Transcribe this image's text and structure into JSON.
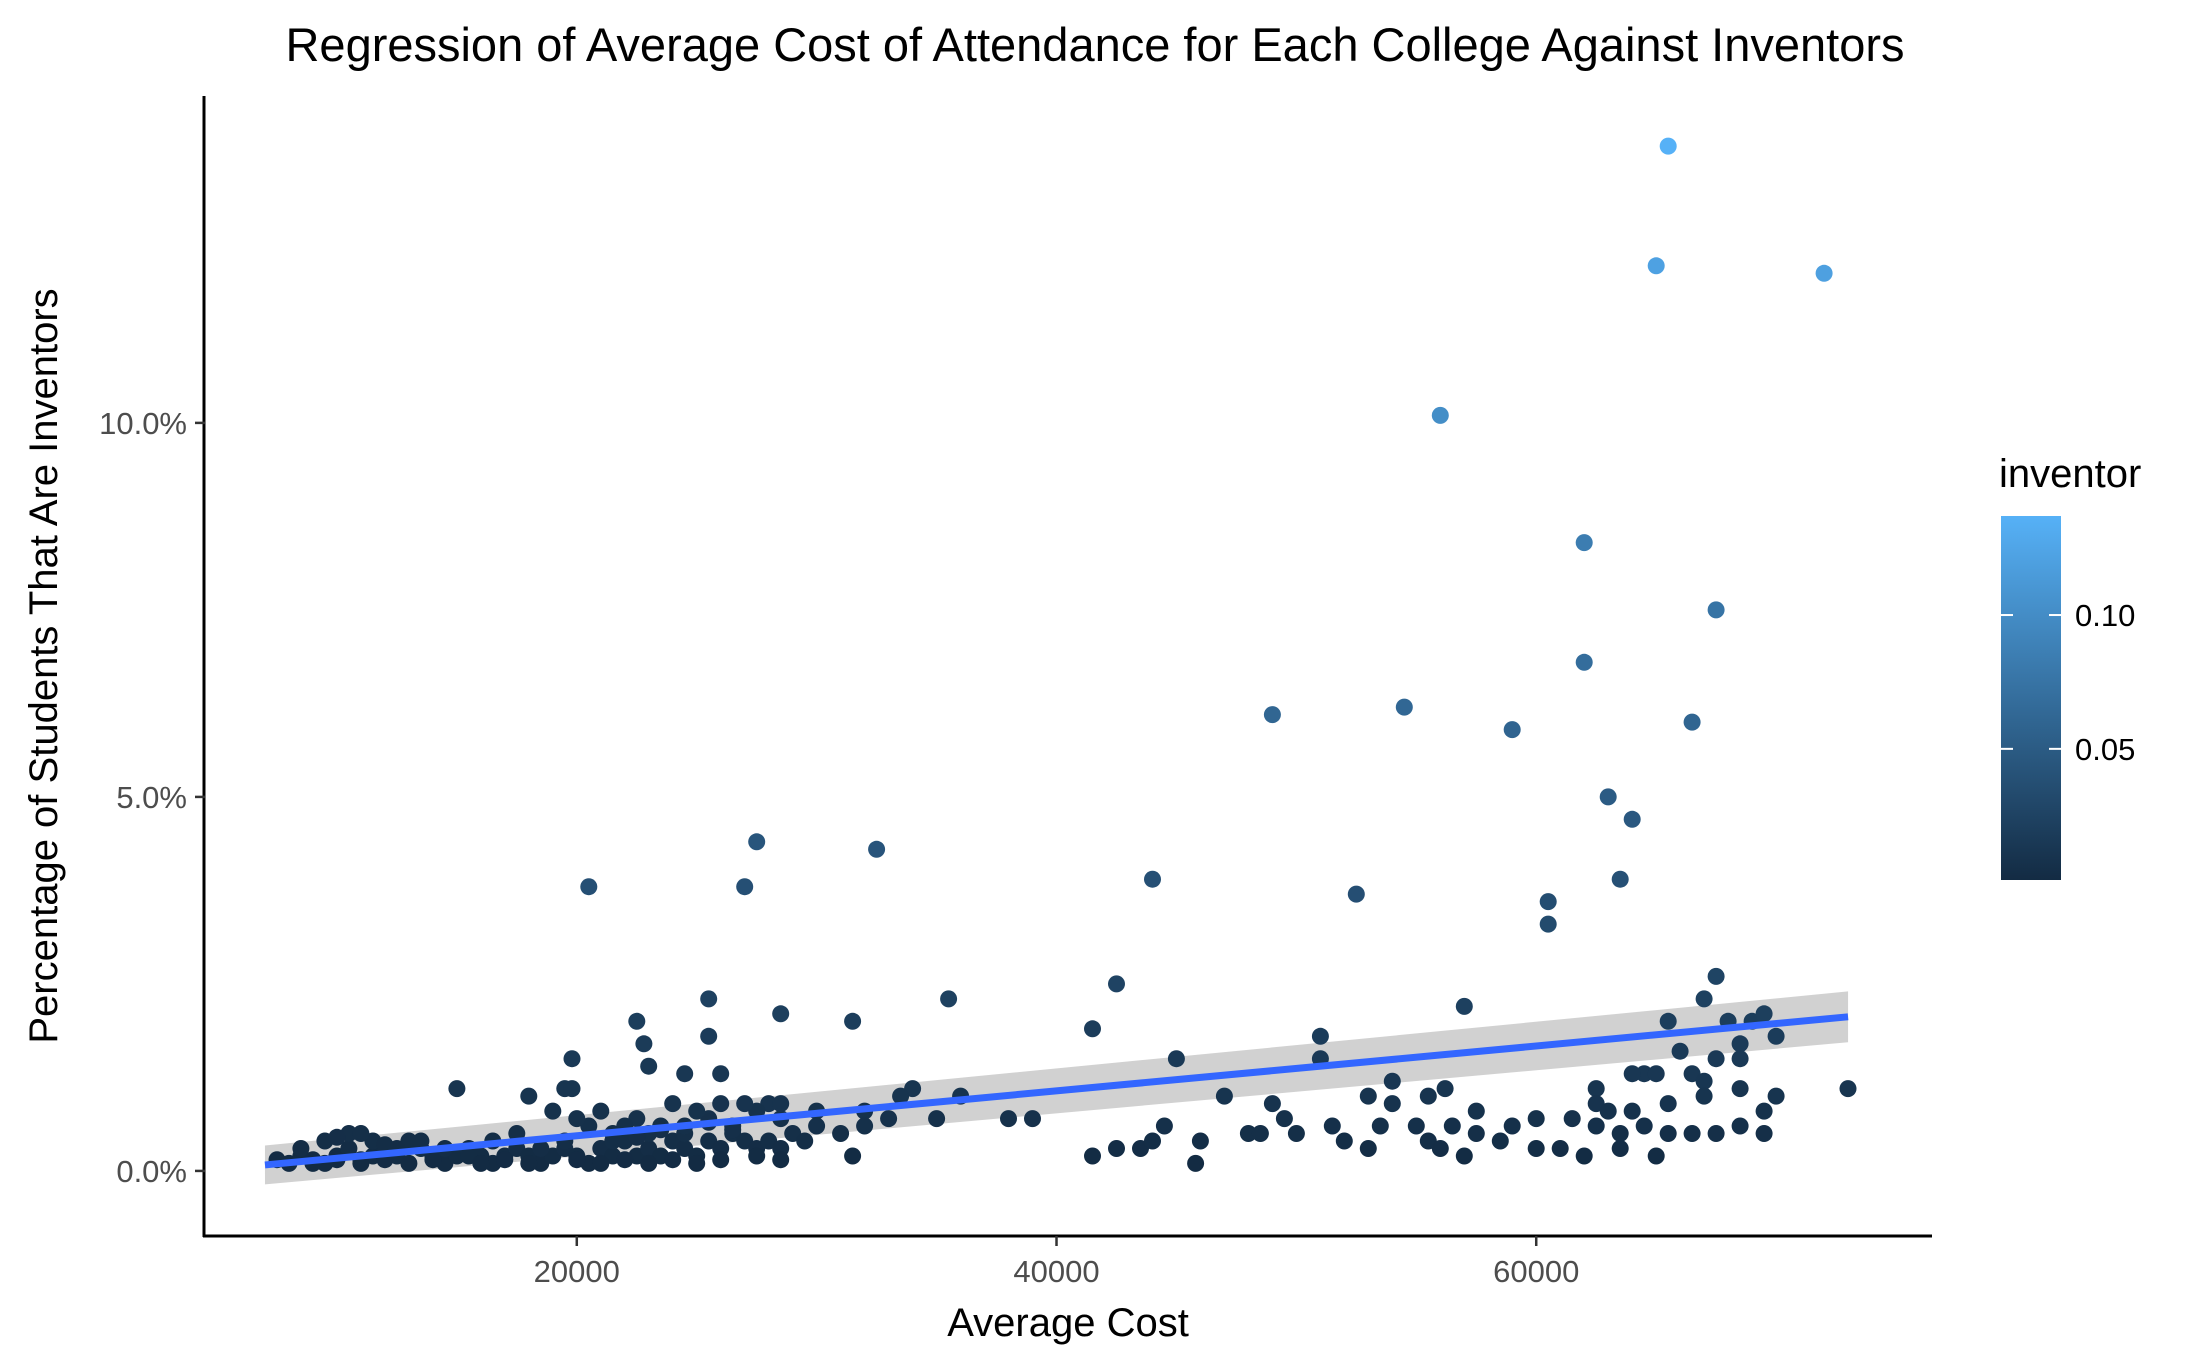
{
  "chart_data": {
    "type": "scatter",
    "title": "Regression of Average Cost of Attendance for Each College Against Inventors",
    "xlabel": "Average Cost",
    "ylabel": "Percentage of Students That Are Inventors",
    "xlim": [
      4500,
      76500
    ],
    "ylim": [
      -0.0087,
      0.1437
    ],
    "xticks": [
      20000,
      40000,
      60000
    ],
    "xtick_labels": [
      "20000",
      "40000",
      "60000"
    ],
    "yticks": [
      0.0,
      0.05,
      0.1
    ],
    "ytick_labels": [
      "0.0%",
      "5.0%",
      "10.0%"
    ],
    "grid": false,
    "legend": {
      "title": "inventor",
      "position": "right",
      "type": "colorbar",
      "range": [
        0.001,
        0.137
      ],
      "ticks": [
        0.05,
        0.1
      ],
      "tick_labels": [
        "0.05",
        "0.10"
      ],
      "color_low": "#132B43",
      "color_high": "#56B1F7"
    },
    "regression": {
      "x": [
        7000,
        73000
      ],
      "y": [
        0.0008,
        0.0206
      ],
      "ci_width": [
        0.0026,
        0.0034
      ],
      "line_color": "#3366FF",
      "band_color": "#cccccc"
    },
    "points": [
      [
        65500,
        0.137
      ],
      [
        65000,
        0.121
      ],
      [
        72000,
        0.12
      ],
      [
        56000,
        0.101
      ],
      [
        62000,
        0.084
      ],
      [
        67500,
        0.075
      ],
      [
        62000,
        0.068
      ],
      [
        49000,
        0.061
      ],
      [
        54500,
        0.062
      ],
      [
        59000,
        0.059
      ],
      [
        66500,
        0.06
      ],
      [
        63000,
        0.05
      ],
      [
        64000,
        0.047
      ],
      [
        27500,
        0.044
      ],
      [
        32500,
        0.043
      ],
      [
        44000,
        0.039
      ],
      [
        63500,
        0.039
      ],
      [
        52500,
        0.037
      ],
      [
        20500,
        0.038
      ],
      [
        27000,
        0.038
      ],
      [
        60500,
        0.036
      ],
      [
        60500,
        0.033
      ],
      [
        67500,
        0.026
      ],
      [
        42500,
        0.025
      ],
      [
        35500,
        0.023
      ],
      [
        25500,
        0.023
      ],
      [
        57000,
        0.022
      ],
      [
        67000,
        0.023
      ],
      [
        28500,
        0.021
      ],
      [
        22500,
        0.02
      ],
      [
        31500,
        0.02
      ],
      [
        41500,
        0.019
      ],
      [
        65500,
        0.02
      ],
      [
        68000,
        0.02
      ],
      [
        69000,
        0.02
      ],
      [
        69500,
        0.021
      ],
      [
        51000,
        0.018
      ],
      [
        70000,
        0.018
      ],
      [
        25500,
        0.018
      ],
      [
        22800,
        0.017
      ],
      [
        66000,
        0.016
      ],
      [
        67500,
        0.015
      ],
      [
        68500,
        0.017
      ],
      [
        51000,
        0.015
      ],
      [
        45000,
        0.015
      ],
      [
        68500,
        0.015
      ],
      [
        19800,
        0.015
      ],
      [
        23000,
        0.014
      ],
      [
        24500,
        0.013
      ],
      [
        26000,
        0.013
      ],
      [
        64500,
        0.013
      ],
      [
        66500,
        0.013
      ],
      [
        65000,
        0.013
      ],
      [
        64000,
        0.013
      ],
      [
        67000,
        0.012
      ],
      [
        62500,
        0.011
      ],
      [
        19500,
        0.011
      ],
      [
        19800,
        0.011
      ],
      [
        15000,
        0.011
      ],
      [
        54000,
        0.012
      ],
      [
        56200,
        0.011
      ],
      [
        18000,
        0.01
      ],
      [
        54000,
        0.009
      ],
      [
        34000,
        0.011
      ],
      [
        33500,
        0.01
      ],
      [
        36000,
        0.01
      ],
      [
        47000,
        0.01
      ],
      [
        49000,
        0.009
      ],
      [
        53000,
        0.01
      ],
      [
        55500,
        0.01
      ],
      [
        57500,
        0.008
      ],
      [
        62500,
        0.009
      ],
      [
        63000,
        0.008
      ],
      [
        64000,
        0.008
      ],
      [
        65500,
        0.009
      ],
      [
        67000,
        0.01
      ],
      [
        68500,
        0.011
      ],
      [
        69500,
        0.008
      ],
      [
        70000,
        0.01
      ],
      [
        73000,
        0.011
      ],
      [
        28000,
        0.009
      ],
      [
        30000,
        0.008
      ],
      [
        32000,
        0.008
      ],
      [
        33000,
        0.007
      ],
      [
        35000,
        0.007
      ],
      [
        38000,
        0.007
      ],
      [
        39000,
        0.007
      ],
      [
        49500,
        0.007
      ],
      [
        48000,
        0.005
      ],
      [
        50000,
        0.005
      ],
      [
        51500,
        0.006
      ],
      [
        53500,
        0.006
      ],
      [
        55000,
        0.006
      ],
      [
        56500,
        0.006
      ],
      [
        57500,
        0.005
      ],
      [
        59000,
        0.006
      ],
      [
        60000,
        0.007
      ],
      [
        61500,
        0.007
      ],
      [
        62500,
        0.006
      ],
      [
        63500,
        0.005
      ],
      [
        64500,
        0.006
      ],
      [
        65500,
        0.005
      ],
      [
        66500,
        0.005
      ],
      [
        67500,
        0.005
      ],
      [
        68500,
        0.006
      ],
      [
        69500,
        0.005
      ],
      [
        44500,
        0.006
      ],
      [
        46000,
        0.004
      ],
      [
        48500,
        0.005
      ],
      [
        52000,
        0.004
      ],
      [
        53000,
        0.003
      ],
      [
        55500,
        0.004
      ],
      [
        56000,
        0.003
      ],
      [
        57000,
        0.002
      ],
      [
        58500,
        0.004
      ],
      [
        60000,
        0.003
      ],
      [
        61000,
        0.003
      ],
      [
        62000,
        0.002
      ],
      [
        63500,
        0.003
      ],
      [
        65000,
        0.002
      ],
      [
        41500,
        0.002
      ],
      [
        42500,
        0.003
      ],
      [
        43500,
        0.003
      ],
      [
        44000,
        0.004
      ],
      [
        45800,
        0.001
      ],
      [
        7500,
        0.0015
      ],
      [
        8000,
        0.001
      ],
      [
        8500,
        0.002
      ],
      [
        9000,
        0.0015
      ],
      [
        9500,
        0.001
      ],
      [
        10000,
        0.002
      ],
      [
        10500,
        0.003
      ],
      [
        11000,
        0.0015
      ],
      [
        11500,
        0.002
      ],
      [
        12000,
        0.003
      ],
      [
        12500,
        0.002
      ],
      [
        13000,
        0.004
      ],
      [
        13500,
        0.003
      ],
      [
        14000,
        0.002
      ],
      [
        14500,
        0.001
      ],
      [
        15000,
        0.002
      ],
      [
        15500,
        0.003
      ],
      [
        16000,
        0.002
      ],
      [
        16500,
        0.001
      ],
      [
        17000,
        0.002
      ],
      [
        17500,
        0.003
      ],
      [
        18000,
        0.002
      ],
      [
        18500,
        0.001
      ],
      [
        19000,
        0.002
      ],
      [
        19500,
        0.003
      ],
      [
        20000,
        0.002
      ],
      [
        20500,
        0.001
      ],
      [
        21000,
        0.003
      ],
      [
        21500,
        0.002
      ],
      [
        22000,
        0.004
      ],
      [
        22500,
        0.002
      ],
      [
        23000,
        0.003
      ],
      [
        23500,
        0.002
      ],
      [
        24000,
        0.004
      ],
      [
        24500,
        0.003
      ],
      [
        25000,
        0.002
      ],
      [
        25500,
        0.004
      ],
      [
        26000,
        0.003
      ],
      [
        26500,
        0.005
      ],
      [
        27000,
        0.004
      ],
      [
        27500,
        0.003
      ],
      [
        28000,
        0.004
      ],
      [
        28500,
        0.003
      ],
      [
        29000,
        0.005
      ],
      [
        29500,
        0.004
      ],
      [
        30000,
        0.006
      ],
      [
        31000,
        0.005
      ],
      [
        32000,
        0.006
      ],
      [
        8500,
        0.003
      ],
      [
        9500,
        0.004
      ],
      [
        10500,
        0.005
      ],
      [
        11500,
        0.004
      ],
      [
        12500,
        0.003
      ],
      [
        13500,
        0.004
      ],
      [
        14500,
        0.003
      ],
      [
        15500,
        0.002
      ],
      [
        16500,
        0.004
      ],
      [
        17500,
        0.005
      ],
      [
        18500,
        0.003
      ],
      [
        19500,
        0.004
      ],
      [
        20500,
        0.006
      ],
      [
        21500,
        0.005
      ],
      [
        22500,
        0.007
      ],
      [
        23500,
        0.006
      ],
      [
        24500,
        0.005
      ],
      [
        25500,
        0.007
      ],
      [
        26500,
        0.006
      ],
      [
        27500,
        0.008
      ],
      [
        28500,
        0.007
      ],
      [
        19000,
        0.008
      ],
      [
        20000,
        0.007
      ],
      [
        21000,
        0.008
      ],
      [
        22000,
        0.006
      ],
      [
        23000,
        0.005
      ],
      [
        24000,
        0.009
      ],
      [
        25000,
        0.008
      ],
      [
        26000,
        0.009
      ],
      [
        27000,
        0.009
      ],
      [
        28500,
        0.009
      ],
      [
        9000,
        0.001
      ],
      [
        10000,
        0.0015
      ],
      [
        11000,
        0.001
      ],
      [
        12000,
        0.0015
      ],
      [
        13000,
        0.001
      ],
      [
        14000,
        0.0015
      ],
      [
        16000,
        0.001
      ],
      [
        17000,
        0.0015
      ],
      [
        18000,
        0.001
      ],
      [
        20000,
        0.0015
      ],
      [
        21000,
        0.001
      ],
      [
        22000,
        0.0015
      ],
      [
        23000,
        0.001
      ],
      [
        24000,
        0.0015
      ],
      [
        25000,
        0.001
      ],
      [
        26000,
        0.0015
      ],
      [
        27500,
        0.002
      ],
      [
        28500,
        0.0015
      ],
      [
        31500,
        0.002
      ],
      [
        10000,
        0.0045
      ],
      [
        11000,
        0.005
      ],
      [
        12000,
        0.0035
      ],
      [
        21500,
        0.004
      ],
      [
        22500,
        0.0045
      ],
      [
        23500,
        0.0055
      ],
      [
        24500,
        0.006
      ],
      [
        25500,
        0.0065
      ],
      [
        26500,
        0.0055
      ]
    ]
  }
}
